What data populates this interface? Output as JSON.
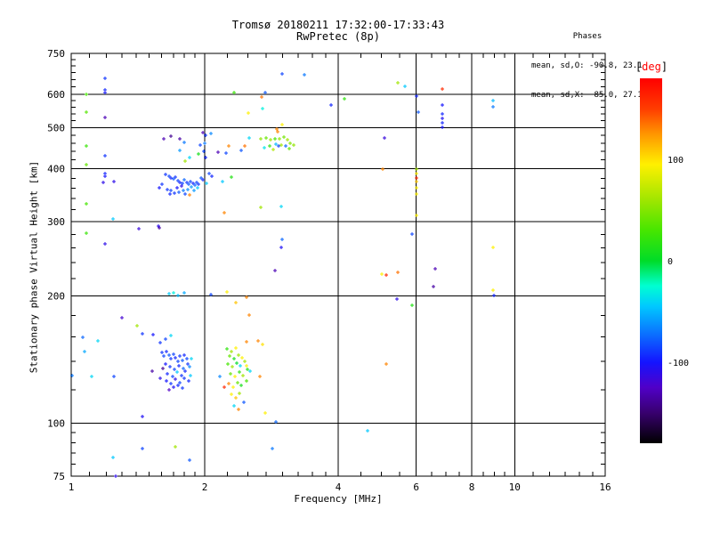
{
  "header": {
    "title_line1": "Tromsø 20180211 17:32:00-17:33:43",
    "title_line2": "RwPretec (8p)",
    "stats": {
      "heading": "Phases",
      "line_o": "mean, sd,O: -90.8, 23.1",
      "line_x": "mean, sd,X:  85.0, 27.1"
    }
  },
  "chart_data": {
    "type": "scatter",
    "title": "Tromsø 20180211 17:32:00-17:33:43 RwPretec (8p)",
    "xlabel": "Frequency [MHz]",
    "ylabel": "Stationary phase Virtual Height [km]",
    "x_scale": "log",
    "y_scale": "log",
    "xlim": [
      1,
      16
    ],
    "ylim": [
      75,
      750
    ],
    "x_major_ticks": [
      1,
      2,
      4,
      6,
      8,
      10,
      16
    ],
    "x_minor_ticks": [
      1.1,
      1.2,
      1.3,
      1.4,
      1.5,
      1.6,
      1.7,
      1.8,
      1.9,
      2.25,
      2.5,
      2.75,
      3,
      3.25,
      3.5,
      3.75,
      4.5,
      5,
      5.5,
      6.5,
      7,
      7.5,
      8.5,
      9,
      9.5,
      11,
      12,
      13,
      14,
      15
    ],
    "y_major_ticks": [
      750,
      600,
      500,
      400,
      300,
      200,
      100,
      75
    ],
    "y_minor_ticks": [
      725,
      700,
      675,
      650,
      625,
      580,
      560,
      540,
      520,
      480,
      460,
      440,
      420,
      380,
      360,
      340,
      320,
      280,
      260,
      240,
      220,
      180,
      160,
      140,
      120,
      95,
      90,
      85,
      80
    ],
    "x_gridlines": [
      2,
      4,
      6,
      8,
      10
    ],
    "y_gridlines": [
      600,
      500,
      400,
      300,
      200,
      100
    ],
    "grid": true,
    "axis_color": "#000000",
    "background_color": "#ffffff",
    "colorbar": {
      "label_bracket_open": "[",
      "label_text": "deg",
      "label_bracket_close": "]",
      "label_color": "#ff0000",
      "ticks": [
        100,
        0,
        -100
      ],
      "range": [
        -180,
        180
      ]
    },
    "colormap": [
      [
        -180,
        "#000000"
      ],
      [
        -150,
        "#38006e"
      ],
      [
        -125,
        "#5000c8"
      ],
      [
        -100,
        "#1414ff"
      ],
      [
        -70,
        "#0a78ff"
      ],
      [
        -45,
        "#00c8ff"
      ],
      [
        -25,
        "#00ffd2"
      ],
      [
        0,
        "#00dc28"
      ],
      [
        30,
        "#46e600"
      ],
      [
        60,
        "#a0e600"
      ],
      [
        95,
        "#fff000"
      ],
      [
        125,
        "#ff9600"
      ],
      [
        150,
        "#ff3c00"
      ],
      [
        180,
        "#ff0000"
      ]
    ],
    "points_format": [
      "freq_mhz",
      "height_km",
      "phase_deg"
    ],
    "points": [
      [
        1.19,
        655,
        -90
      ],
      [
        1.19,
        615,
        -95
      ],
      [
        1.19,
        607,
        -100
      ],
      [
        1.08,
        600,
        30
      ],
      [
        1.08,
        545,
        35
      ],
      [
        1.19,
        528,
        -130
      ],
      [
        1.08,
        452,
        25
      ],
      [
        1.19,
        430,
        -90
      ],
      [
        1.08,
        410,
        40
      ],
      [
        1.19,
        390,
        -95
      ],
      [
        1.19,
        384,
        -100
      ],
      [
        1.18,
        371,
        -110
      ],
      [
        1.25,
        373,
        -110
      ],
      [
        1.08,
        330,
        30
      ],
      [
        1.24,
        305,
        -45
      ],
      [
        1.42,
        288,
        -115
      ],
      [
        1.58,
        290,
        -135
      ],
      [
        1.08,
        282,
        25
      ],
      [
        1.19,
        266,
        -110
      ],
      [
        1.57,
        293,
        -110
      ],
      [
        1.06,
        160,
        -75
      ],
      [
        1.15,
        157,
        -40
      ],
      [
        1.3,
        178,
        -120
      ],
      [
        1.41,
        170,
        60
      ],
      [
        1.07,
        148,
        -55
      ],
      [
        1.005,
        130,
        -70
      ],
      [
        1.45,
        163,
        -90
      ],
      [
        1.53,
        162,
        -100
      ],
      [
        1.52,
        133,
        -135
      ],
      [
        1.68,
        478,
        -140
      ],
      [
        1.76,
        470,
        -135
      ],
      [
        1.62,
        470,
        -130
      ],
      [
        1.8,
        462,
        -70
      ],
      [
        1.95,
        455,
        -85
      ],
      [
        1.98,
        488,
        -130
      ],
      [
        2.01,
        480,
        -90
      ],
      [
        2.07,
        485,
        -65
      ],
      [
        2.0,
        460,
        -70
      ],
      [
        1.99,
        440,
        -85
      ],
      [
        2.01,
        425,
        -95
      ],
      [
        1.85,
        425,
        -40
      ],
      [
        1.76,
        443,
        -60
      ],
      [
        1.94,
        434,
        10
      ],
      [
        1.81,
        418,
        60
      ],
      [
        2.14,
        438,
        -130
      ],
      [
        2.23,
        436,
        -85
      ],
      [
        2.27,
        452,
        130
      ],
      [
        2.91,
        496,
        130
      ],
      [
        2.46,
        452,
        135
      ],
      [
        2.52,
        474,
        -40
      ],
      [
        2.94,
        453,
        -85
      ],
      [
        2.42,
        442,
        -80
      ],
      [
        2.19,
        373,
        -45
      ],
      [
        2.3,
        383,
        15
      ],
      [
        1.63,
        388,
        -90
      ],
      [
        1.66,
        384,
        -85
      ],
      [
        1.68,
        380,
        -95
      ],
      [
        1.7,
        378,
        -80
      ],
      [
        1.72,
        382,
        -90
      ],
      [
        1.74,
        375,
        -85
      ],
      [
        1.76,
        372,
        -95
      ],
      [
        1.78,
        370,
        -85
      ],
      [
        1.8,
        376,
        -75
      ],
      [
        1.82,
        372,
        -90
      ],
      [
        1.84,
        368,
        -80
      ],
      [
        1.86,
        374,
        -85
      ],
      [
        1.88,
        370,
        -95
      ],
      [
        1.9,
        366,
        -75
      ],
      [
        1.92,
        372,
        -85
      ],
      [
        1.94,
        368,
        -90
      ],
      [
        1.96,
        380,
        -80
      ],
      [
        1.98,
        376,
        -95
      ],
      [
        1.87,
        362,
        -60
      ],
      [
        1.83,
        358,
        -65
      ],
      [
        1.79,
        355,
        -70
      ],
      [
        1.75,
        352,
        -80
      ],
      [
        1.71,
        350,
        -90
      ],
      [
        1.67,
        348,
        -95
      ],
      [
        1.73,
        360,
        -100
      ],
      [
        1.77,
        364,
        -110
      ],
      [
        1.81,
        348,
        -85
      ],
      [
        1.89,
        355,
        -60
      ],
      [
        1.93,
        360,
        -45
      ],
      [
        1.85,
        347,
        130
      ],
      [
        2.05,
        390,
        -85
      ],
      [
        2.08,
        385,
        -95
      ],
      [
        1.6,
        368,
        -90
      ],
      [
        1.58,
        360,
        -100
      ],
      [
        2.02,
        370,
        -45
      ],
      [
        1.65,
        357,
        -90
      ],
      [
        1.68,
        355,
        -85
      ],
      [
        2.99,
        671,
        -85
      ],
      [
        3.36,
        668,
        -70
      ],
      [
        2.33,
        607,
        25
      ],
      [
        2.74,
        607,
        -80
      ],
      [
        2.69,
        590,
        135
      ],
      [
        4.13,
        587,
        20
      ],
      [
        3.85,
        567,
        -95
      ],
      [
        2.7,
        556,
        -30
      ],
      [
        2.51,
        541,
        95
      ],
      [
        2.99,
        510,
        95
      ],
      [
        2.92,
        490,
        130
      ],
      [
        2.68,
        470,
        55
      ],
      [
        2.75,
        474,
        40
      ],
      [
        2.82,
        468,
        60
      ],
      [
        2.88,
        472,
        30
      ],
      [
        2.95,
        470,
        55
      ],
      [
        3.02,
        475,
        45
      ],
      [
        3.08,
        468,
        60
      ],
      [
        3.12,
        460,
        50
      ],
      [
        2.9,
        458,
        -50
      ],
      [
        2.98,
        455,
        60
      ],
      [
        3.05,
        452,
        -75
      ],
      [
        2.8,
        452,
        20
      ],
      [
        3.18,
        455,
        55
      ],
      [
        2.72,
        448,
        -35
      ],
      [
        3.1,
        447,
        40
      ],
      [
        2.86,
        445,
        65
      ],
      [
        5.45,
        639,
        60
      ],
      [
        5.66,
        627,
        -45
      ],
      [
        6.87,
        617,
        160
      ],
      [
        6.0,
        594,
        -95
      ],
      [
        6.05,
        545,
        -80
      ],
      [
        6.87,
        565,
        -100
      ],
      [
        6.87,
        540,
        -95
      ],
      [
        6.87,
        527,
        -105
      ],
      [
        6.87,
        514,
        -95
      ],
      [
        6.87,
        501,
        -100
      ],
      [
        8.93,
        579,
        -50
      ],
      [
        8.95,
        560,
        -70
      ],
      [
        5.08,
        474,
        -115
      ],
      [
        6.0,
        400,
        60
      ],
      [
        6.0,
        390,
        95
      ],
      [
        6.0,
        380,
        160
      ],
      [
        6.0,
        373,
        110
      ],
      [
        6.0,
        360,
        95
      ],
      [
        6.0,
        349,
        95
      ],
      [
        6.0,
        311,
        95
      ],
      [
        5.05,
        400,
        130
      ],
      [
        5.87,
        281,
        -85
      ],
      [
        6.63,
        232,
        -130
      ],
      [
        6.57,
        211,
        -135
      ],
      [
        8.93,
        261,
        95
      ],
      [
        8.93,
        207,
        95
      ],
      [
        8.97,
        201,
        -95
      ],
      [
        5.42,
        197,
        -110
      ],
      [
        5.86,
        190,
        15
      ],
      [
        5.02,
        225,
        95
      ],
      [
        5.14,
        224,
        160
      ],
      [
        5.45,
        228,
        135
      ],
      [
        5.14,
        138,
        130
      ],
      [
        4.65,
        96,
        -45
      ],
      [
        2.99,
        272,
        -75
      ],
      [
        2.98,
        261,
        -105
      ],
      [
        2.88,
        230,
        -130
      ],
      [
        2.21,
        315,
        130
      ],
      [
        2.68,
        324,
        60
      ],
      [
        2.98,
        326,
        -40
      ],
      [
        1.66,
        203,
        -45
      ],
      [
        1.7,
        204,
        -30
      ],
      [
        1.74,
        201,
        -50
      ],
      [
        1.8,
        204,
        -55
      ],
      [
        2.07,
        202,
        -85
      ],
      [
        2.25,
        205,
        95
      ],
      [
        2.35,
        193,
        110
      ],
      [
        2.49,
        199,
        130
      ],
      [
        1.6,
        147,
        -90
      ],
      [
        1.62,
        144,
        -85
      ],
      [
        1.64,
        148,
        -95
      ],
      [
        1.66,
        145,
        -80
      ],
      [
        1.68,
        142,
        -90
      ],
      [
        1.7,
        146,
        -85
      ],
      [
        1.72,
        143,
        -95
      ],
      [
        1.74,
        140,
        -85
      ],
      [
        1.76,
        144,
        -90
      ],
      [
        1.78,
        141,
        -80
      ],
      [
        1.8,
        145,
        -95
      ],
      [
        1.82,
        142,
        -85
      ],
      [
        1.63,
        138,
        -100
      ],
      [
        1.67,
        136,
        -90
      ],
      [
        1.71,
        134,
        -85
      ],
      [
        1.75,
        137,
        -95
      ],
      [
        1.79,
        135,
        -75
      ],
      [
        1.83,
        138,
        -90
      ],
      [
        1.65,
        131,
        -95
      ],
      [
        1.69,
        129,
        -85
      ],
      [
        1.73,
        132,
        -45
      ],
      [
        1.77,
        130,
        -90
      ],
      [
        1.81,
        133,
        -95
      ],
      [
        1.85,
        136,
        -65
      ],
      [
        1.64,
        126,
        -100
      ],
      [
        1.68,
        124,
        -90
      ],
      [
        1.72,
        127,
        -110
      ],
      [
        1.76,
        125,
        -85
      ],
      [
        1.8,
        128,
        -90
      ],
      [
        1.84,
        126,
        -95
      ],
      [
        1.7,
        122,
        -105
      ],
      [
        1.74,
        123,
        -95
      ],
      [
        1.78,
        121,
        -90
      ],
      [
        1.66,
        120,
        -125
      ],
      [
        1.86,
        130,
        -45
      ],
      [
        1.87,
        142,
        -40
      ],
      [
        1.61,
        135,
        -140
      ],
      [
        1.59,
        128,
        -110
      ],
      [
        2.25,
        150,
        20
      ],
      [
        2.3,
        148,
        60
      ],
      [
        2.35,
        151,
        95
      ],
      [
        2.28,
        144,
        40
      ],
      [
        2.33,
        142,
        10
      ],
      [
        2.38,
        145,
        60
      ],
      [
        2.43,
        143,
        95
      ],
      [
        2.26,
        138,
        30
      ],
      [
        2.31,
        136,
        60
      ],
      [
        2.36,
        139,
        0
      ],
      [
        2.41,
        137,
        -40
      ],
      [
        2.46,
        140,
        60
      ],
      [
        2.29,
        131,
        40
      ],
      [
        2.34,
        129,
        95
      ],
      [
        2.39,
        132,
        20
      ],
      [
        2.44,
        130,
        60
      ],
      [
        2.27,
        124,
        130
      ],
      [
        2.32,
        122,
        95
      ],
      [
        2.37,
        125,
        40
      ],
      [
        2.42,
        123,
        10
      ],
      [
        2.3,
        117,
        95
      ],
      [
        2.35,
        115,
        110
      ],
      [
        2.4,
        118,
        60
      ],
      [
        2.33,
        110,
        -40
      ],
      [
        2.38,
        108,
        130
      ],
      [
        2.45,
        112,
        -80
      ],
      [
        2.48,
        126,
        30
      ],
      [
        2.5,
        134,
        15
      ],
      [
        2.52,
        180,
        130
      ],
      [
        2.64,
        157,
        130
      ],
      [
        2.7,
        154,
        100
      ],
      [
        2.66,
        129,
        130
      ],
      [
        2.49,
        156,
        130
      ],
      [
        2.53,
        133,
        -40
      ],
      [
        2.49,
        137,
        95
      ],
      [
        1.59,
        155,
        -90
      ],
      [
        1.63,
        158,
        -85
      ],
      [
        1.68,
        161,
        -40
      ],
      [
        1.11,
        129,
        -40
      ],
      [
        1.25,
        129,
        -85
      ],
      [
        2.16,
        129,
        -65
      ],
      [
        2.21,
        122,
        160
      ],
      [
        1.45,
        104,
        -105
      ],
      [
        2.74,
        106,
        95
      ],
      [
        2.9,
        101,
        -75
      ],
      [
        1.45,
        87,
        -85
      ],
      [
        1.72,
        88,
        60
      ],
      [
        1.24,
        83,
        -45
      ],
      [
        1.85,
        82,
        -80
      ],
      [
        2.84,
        87,
        -70
      ],
      [
        1.26,
        75,
        -110
      ]
    ]
  }
}
